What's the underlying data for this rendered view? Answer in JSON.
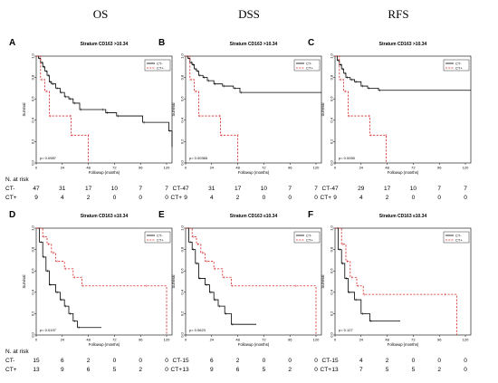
{
  "column_headers": [
    "OS",
    "DSS",
    "RFS"
  ],
  "risk_header": "N. at risk",
  "risk_row_labels": [
    "CT-",
    "CT+"
  ],
  "chart_data": [
    {
      "type": "line",
      "panel": "A",
      "title": "Stratum CD163 >10.34",
      "xlabel": "Followup (months)",
      "ylabel": "Survival",
      "xlim": [
        0,
        125
      ],
      "ylim": [
        0,
        1
      ],
      "xticks": [
        0,
        24,
        48,
        72,
        96,
        120
      ],
      "yticks": [
        0.0,
        0.2,
        0.4,
        0.6,
        0.8,
        1.0
      ],
      "pvalue": "p= 0.0987",
      "risk_table": {
        "CT-": [
          47,
          31,
          17,
          10,
          7,
          7
        ],
        "CT+": [
          9,
          4,
          2,
          0,
          0,
          0
        ]
      },
      "series": [
        {
          "name": "CT-",
          "color": "#000000",
          "dash": false,
          "points": [
            [
              0,
              1.0
            ],
            [
              2,
              0.98
            ],
            [
              4,
              0.94
            ],
            [
              6,
              0.9
            ],
            [
              8,
              0.86
            ],
            [
              10,
              0.82
            ],
            [
              12,
              0.76
            ],
            [
              14,
              0.74
            ],
            [
              18,
              0.7
            ],
            [
              22,
              0.66
            ],
            [
              26,
              0.62
            ],
            [
              30,
              0.6
            ],
            [
              34,
              0.56
            ],
            [
              40,
              0.5
            ],
            [
              60,
              0.5
            ],
            [
              64,
              0.47
            ],
            [
              74,
              0.44
            ],
            [
              98,
              0.38
            ],
            [
              122,
              0.3
            ],
            [
              125,
              0.15
            ]
          ]
        },
        {
          "name": "CT+",
          "color": "#d62728",
          "dash": true,
          "points": [
            [
              0,
              1.0
            ],
            [
              4,
              0.78
            ],
            [
              8,
              0.67
            ],
            [
              12,
              0.44
            ],
            [
              30,
              0.44
            ],
            [
              32,
              0.26
            ],
            [
              47,
              0.26
            ],
            [
              48,
              0.0
            ]
          ]
        }
      ]
    },
    {
      "type": "line",
      "panel": "B",
      "title": "Stratum CD163 >10.34",
      "xlabel": "Followup (months)",
      "ylabel": "Survival",
      "xlim": [
        0,
        125
      ],
      "ylim": [
        0,
        1
      ],
      "xticks": [
        0,
        24,
        48,
        72,
        96,
        120
      ],
      "yticks": [
        0.0,
        0.2,
        0.4,
        0.6,
        0.8,
        1.0
      ],
      "pvalue": "p= 0.00365",
      "risk_table": {
        "CT-": [
          47,
          31,
          17,
          10,
          7,
          7
        ],
        "CT+": [
          9,
          4,
          2,
          0,
          0,
          0
        ]
      },
      "series": [
        {
          "name": "CT-",
          "color": "#000000",
          "dash": false,
          "points": [
            [
              0,
              1.0
            ],
            [
              2,
              0.98
            ],
            [
              4,
              0.94
            ],
            [
              6,
              0.92
            ],
            [
              8,
              0.88
            ],
            [
              10,
              0.86
            ],
            [
              12,
              0.82
            ],
            [
              16,
              0.8
            ],
            [
              20,
              0.77
            ],
            [
              26,
              0.74
            ],
            [
              34,
              0.72
            ],
            [
              44,
              0.7
            ],
            [
              50,
              0.66
            ],
            [
              125,
              0.66
            ]
          ]
        },
        {
          "name": "CT+",
          "color": "#d62728",
          "dash": true,
          "points": [
            [
              0,
              1.0
            ],
            [
              4,
              0.78
            ],
            [
              8,
              0.67
            ],
            [
              12,
              0.44
            ],
            [
              30,
              0.44
            ],
            [
              32,
              0.26
            ],
            [
              47,
              0.26
            ],
            [
              48,
              0.0
            ]
          ]
        }
      ]
    },
    {
      "type": "line",
      "panel": "C",
      "title": "Stratum CD163 >10.34",
      "xlabel": "Followup (months)",
      "ylabel": "Survival",
      "xlim": [
        0,
        125
      ],
      "ylim": [
        0,
        1
      ],
      "xticks": [
        0,
        24,
        48,
        72,
        96,
        120
      ],
      "yticks": [
        0.0,
        0.2,
        0.4,
        0.6,
        0.8,
        1.0
      ],
      "pvalue": "p= 0.0055",
      "risk_table": {
        "CT-": [
          47,
          29,
          17,
          10,
          7,
          7
        ],
        "CT+": [
          9,
          4,
          2,
          0,
          0,
          0
        ]
      },
      "series": [
        {
          "name": "CT-",
          "color": "#000000",
          "dash": false,
          "points": [
            [
              0,
              1.0
            ],
            [
              2,
              0.96
            ],
            [
              4,
              0.92
            ],
            [
              6,
              0.88
            ],
            [
              8,
              0.84
            ],
            [
              10,
              0.8
            ],
            [
              14,
              0.78
            ],
            [
              18,
              0.76
            ],
            [
              24,
              0.72
            ],
            [
              30,
              0.7
            ],
            [
              40,
              0.68
            ],
            [
              125,
              0.68
            ]
          ]
        },
        {
          "name": "CT+",
          "color": "#d62728",
          "dash": true,
          "points": [
            [
              0,
              1.0
            ],
            [
              4,
              0.78
            ],
            [
              8,
              0.67
            ],
            [
              12,
              0.44
            ],
            [
              30,
              0.44
            ],
            [
              32,
              0.26
            ],
            [
              46,
              0.26
            ],
            [
              47,
              0.0
            ]
          ]
        }
      ]
    },
    {
      "type": "line",
      "panel": "D",
      "title": "Stratum CD163 ≤10.34",
      "xlabel": "Followup (months)",
      "ylabel": "Survival",
      "xlim": [
        0,
        125
      ],
      "ylim": [
        0,
        1
      ],
      "xticks": [
        0,
        24,
        48,
        72,
        96,
        120
      ],
      "yticks": [
        0.0,
        0.2,
        0.4,
        0.6,
        0.8,
        1.0
      ],
      "pvalue": "p= 0.0197",
      "risk_table": {
        "CT-": [
          15,
          6,
          2,
          0,
          0,
          0
        ],
        "CT+": [
          13,
          9,
          6,
          5,
          2,
          0
        ]
      },
      "series": [
        {
          "name": "CT-",
          "color": "#000000",
          "dash": false,
          "points": [
            [
              0,
              1.0
            ],
            [
              3,
              0.87
            ],
            [
              6,
              0.73
            ],
            [
              9,
              0.6
            ],
            [
              12,
              0.47
            ],
            [
              18,
              0.4
            ],
            [
              22,
              0.33
            ],
            [
              26,
              0.27
            ],
            [
              30,
              0.2
            ],
            [
              34,
              0.13
            ],
            [
              38,
              0.07
            ],
            [
              60,
              0.07
            ]
          ]
        },
        {
          "name": "CT+",
          "color": "#d62728",
          "dash": true,
          "points": [
            [
              0,
              1.0
            ],
            [
              6,
              0.92
            ],
            [
              10,
              0.85
            ],
            [
              14,
              0.77
            ],
            [
              18,
              0.69
            ],
            [
              26,
              0.62
            ],
            [
              34,
              0.54
            ],
            [
              42,
              0.46
            ],
            [
              100,
              0.46
            ],
            [
              120,
              0.0
            ]
          ]
        }
      ]
    },
    {
      "type": "line",
      "panel": "E",
      "title": "Stratum CD163 ≤10.34",
      "xlabel": "Followup (months)",
      "ylabel": "Survival",
      "xlim": [
        0,
        125
      ],
      "ylim": [
        0,
        1
      ],
      "xticks": [
        0,
        24,
        48,
        72,
        96,
        120
      ],
      "yticks": [
        0.0,
        0.2,
        0.4,
        0.6,
        0.8,
        1.0
      ],
      "pvalue": "p= 0.0623",
      "risk_table": {
        "CT-": [
          15,
          6,
          2,
          0,
          0,
          0
        ],
        "CT+": [
          13,
          9,
          6,
          5,
          2,
          0
        ]
      },
      "series": [
        {
          "name": "CT-",
          "color": "#000000",
          "dash": false,
          "points": [
            [
              0,
              1.0
            ],
            [
              3,
              0.87
            ],
            [
              6,
              0.8
            ],
            [
              9,
              0.67
            ],
            [
              12,
              0.53
            ],
            [
              18,
              0.47
            ],
            [
              22,
              0.4
            ],
            [
              26,
              0.33
            ],
            [
              30,
              0.27
            ],
            [
              36,
              0.2
            ],
            [
              42,
              0.1
            ],
            [
              65,
              0.1
            ]
          ]
        },
        {
          "name": "CT+",
          "color": "#d62728",
          "dash": true,
          "points": [
            [
              0,
              1.0
            ],
            [
              6,
              0.92
            ],
            [
              10,
              0.85
            ],
            [
              14,
              0.77
            ],
            [
              18,
              0.69
            ],
            [
              26,
              0.62
            ],
            [
              34,
              0.54
            ],
            [
              42,
              0.46
            ],
            [
              100,
              0.46
            ],
            [
              120,
              0.0
            ]
          ]
        }
      ]
    },
    {
      "type": "line",
      "panel": "F",
      "title": "Stratum CD163 ≤10.34",
      "xlabel": "Followup (months)",
      "ylabel": "Survival",
      "xlim": [
        0,
        125
      ],
      "ylim": [
        0,
        1
      ],
      "xticks": [
        0,
        24,
        48,
        72,
        96,
        120
      ],
      "yticks": [
        0.0,
        0.2,
        0.4,
        0.6,
        0.8,
        1.0
      ],
      "pvalue": "p= 0.127",
      "risk_table": {
        "CT-": [
          15,
          4,
          2,
          0,
          0,
          0
        ],
        "CT+": [
          13,
          7,
          5,
          5,
          2,
          0
        ]
      },
      "series": [
        {
          "name": "CT-",
          "color": "#000000",
          "dash": false,
          "points": [
            [
              0,
              1.0
            ],
            [
              3,
              0.8
            ],
            [
              6,
              0.67
            ],
            [
              9,
              0.53
            ],
            [
              12,
              0.4
            ],
            [
              18,
              0.33
            ],
            [
              24,
              0.2
            ],
            [
              32,
              0.13
            ],
            [
              60,
              0.13
            ]
          ]
        },
        {
          "name": "CT+",
          "color": "#d62728",
          "dash": true,
          "points": [
            [
              0,
              1.0
            ],
            [
              6,
              0.85
            ],
            [
              10,
              0.69
            ],
            [
              14,
              0.54
            ],
            [
              20,
              0.46
            ],
            [
              26,
              0.38
            ],
            [
              100,
              0.38
            ],
            [
              112,
              0.0
            ]
          ]
        }
      ]
    }
  ]
}
